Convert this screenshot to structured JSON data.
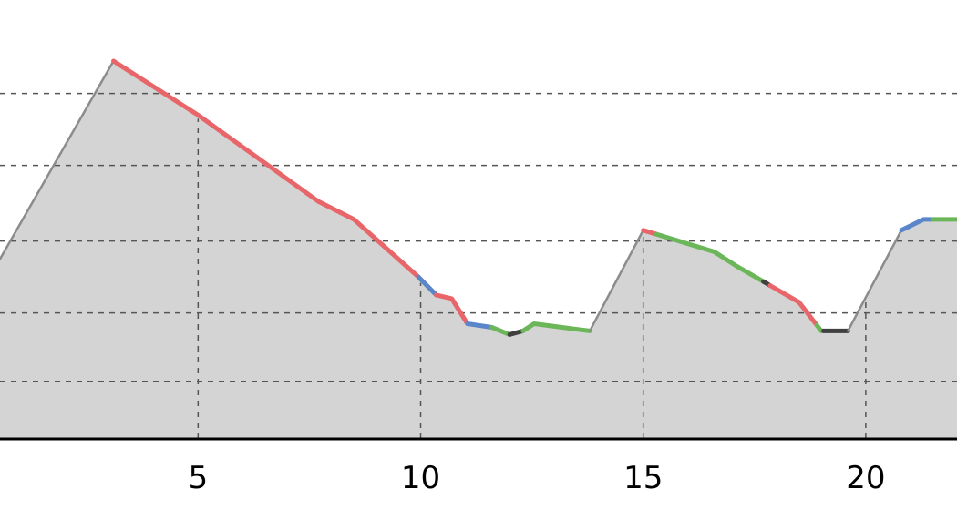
{
  "chart_data": {
    "type": "area",
    "title": "",
    "xlabel": "",
    "ylabel": "",
    "xlim": [
      0.55,
      22.05
    ],
    "ylim": [
      0,
      100
    ],
    "x_ticks": [
      5,
      10,
      15,
      20
    ],
    "y_gridlines": [
      16,
      35,
      55,
      76,
      96
    ],
    "grid": true,
    "area_fill": "#d4d4d4",
    "colors": {
      "rise": "#8c8c8c",
      "red": "#e8666a",
      "blue": "#5b86c9",
      "green": "#6cb65a",
      "dark": "#404040"
    },
    "profile": [
      [
        0.55,
        50
      ],
      [
        3.1,
        105
      ],
      [
        5.0,
        90
      ],
      [
        7.7,
        66
      ],
      [
        8.5,
        61
      ],
      [
        9.95,
        45
      ],
      [
        10.35,
        40
      ],
      [
        10.7,
        39
      ],
      [
        11.05,
        32
      ],
      [
        11.6,
        31
      ],
      [
        12.0,
        29
      ],
      [
        12.3,
        30
      ],
      [
        12.55,
        32
      ],
      [
        13.8,
        30
      ],
      [
        15.0,
        58
      ],
      [
        16.6,
        52
      ],
      [
        17.1,
        48
      ],
      [
        17.8,
        43
      ],
      [
        18.5,
        38
      ],
      [
        19.0,
        30
      ],
      [
        19.6,
        30
      ],
      [
        20.8,
        58
      ],
      [
        21.3,
        61
      ],
      [
        22.05,
        61
      ]
    ],
    "segments": [
      {
        "color": "rise",
        "from": 0.55,
        "to": 3.1
      },
      {
        "color": "red",
        "from": 3.1,
        "to": 9.95
      },
      {
        "color": "blue",
        "from": 9.95,
        "to": 10.35
      },
      {
        "color": "red",
        "from": 10.35,
        "to": 11.05
      },
      {
        "color": "blue",
        "from": 11.05,
        "to": 11.6
      },
      {
        "color": "green",
        "from": 11.6,
        "to": 12.0
      },
      {
        "color": "dark",
        "from": 12.0,
        "to": 12.3
      },
      {
        "color": "green",
        "from": 12.3,
        "to": 13.8
      },
      {
        "color": "rise",
        "from": 13.8,
        "to": 15.0
      },
      {
        "color": "red",
        "from": 15.0,
        "to": 15.3
      },
      {
        "color": "green",
        "from": 15.3,
        "to": 17.7
      },
      {
        "color": "dark",
        "from": 17.7,
        "to": 17.85
      },
      {
        "color": "red",
        "from": 17.85,
        "to": 18.9
      },
      {
        "color": "green",
        "from": 18.9,
        "to": 19.05
      },
      {
        "color": "dark",
        "from": 19.05,
        "to": 19.6
      },
      {
        "color": "rise",
        "from": 19.6,
        "to": 20.8
      },
      {
        "color": "blue",
        "from": 20.8,
        "to": 21.5
      },
      {
        "color": "green",
        "from": 21.5,
        "to": 22.05
      }
    ]
  }
}
